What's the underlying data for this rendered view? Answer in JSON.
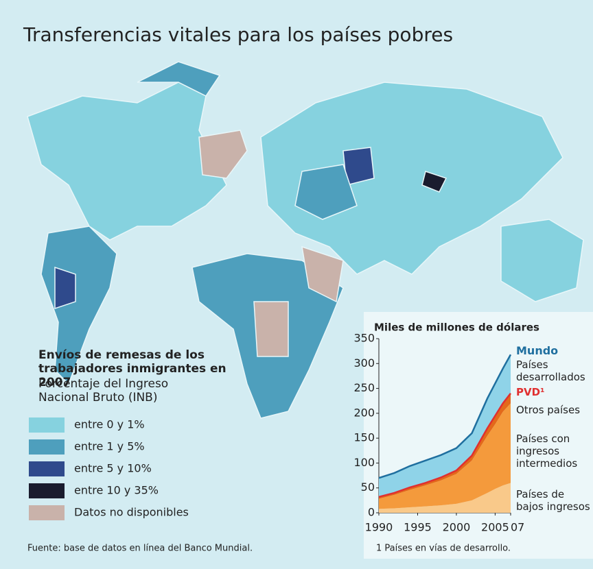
{
  "title": "Transferencias vitales para los países pobres",
  "legend": {
    "title": "Envíos de remesas de los trabajadores inmigrantes en 2007",
    "subtitle": "Porcentaje del Ingreso Nacional Bruto (INB)",
    "items": [
      {
        "label": "entre 0 y 1%",
        "color": "#86d2df"
      },
      {
        "label": "entre 1 y 5%",
        "color": "#4e9fbd"
      },
      {
        "label": "entre 5 y 10%",
        "color": "#2f4a8c"
      },
      {
        "label": "entre 10 y 35%",
        "color": "#1a1c2e"
      },
      {
        "label": "Datos no disponibles",
        "color": "#c9b2aa"
      }
    ]
  },
  "source": "Fuente: base de datos en línea del Banco Mundial.",
  "chart_data": {
    "type": "stacked_area",
    "title": "Miles de millones de dólares",
    "footnote": "1 Países en vías de desarrollo.",
    "x": [
      1990,
      1992,
      1994,
      1996,
      1998,
      2000,
      2002,
      2004,
      2005,
      2006,
      2007
    ],
    "series": [
      {
        "name": "Países de bajos ingresos",
        "color": "#f9c98a",
        "values": [
          8,
          9,
          11,
          13,
          15,
          18,
          25,
          40,
          48,
          55,
          60
        ]
      },
      {
        "name": "Países con ingresos intermedios",
        "color": "#f49a3c",
        "values": [
          20,
          27,
          35,
          42,
          50,
          60,
          80,
          115,
          130,
          148,
          160
        ]
      },
      {
        "name": "Otros países",
        "color": "#e3691a",
        "values": [
          4,
          4,
          5,
          5,
          6,
          7,
          10,
          15,
          17,
          17,
          20
        ]
      },
      {
        "name": "Países desarrollados",
        "color": "#8fd3e8",
        "values": [
          38,
          40,
          43,
          45,
          45,
          45,
          45,
          60,
          65,
          70,
          78
        ]
      }
    ],
    "totals": [
      {
        "name": "Mundo",
        "color": "#1f6f9f"
      },
      {
        "name": "PVD¹",
        "color": "#e03030"
      }
    ],
    "xlim": [
      1990,
      2007
    ],
    "xticks": [
      1990,
      1995,
      2000,
      2005,
      {
        "value": 2007,
        "label": "07"
      }
    ],
    "ylim": [
      0,
      350
    ],
    "yticks": [
      0,
      50,
      100,
      150,
      200,
      250,
      300,
      350
    ]
  }
}
